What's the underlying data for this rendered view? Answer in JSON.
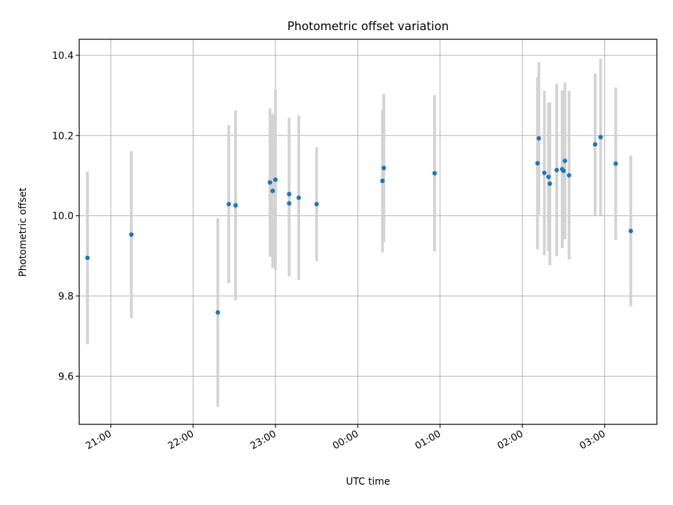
{
  "chart_data": {
    "type": "scatter",
    "title": "Photometric offset variation",
    "xlabel": "UTC time",
    "ylabel": "Photometric offset",
    "x_axis_kind": "time",
    "xlim": [
      "20:37",
      "03:38"
    ],
    "ylim": [
      9.48,
      10.44
    ],
    "x_ticks": [
      "21:00",
      "22:00",
      "23:00",
      "00:00",
      "01:00",
      "02:00",
      "03:00"
    ],
    "y_ticks": [
      9.6,
      9.8,
      10.0,
      10.2,
      10.4
    ],
    "grid": true,
    "legend": "none",
    "colors": {
      "point": "#1f77b4",
      "errorbar": "#d3d3d3"
    },
    "points": [
      {
        "t": "20:43",
        "y": 9.895,
        "yerr": 0.215
      },
      {
        "t": "21:15",
        "y": 9.953,
        "yerr": 0.208
      },
      {
        "t": "22:18",
        "y": 9.759,
        "yerr": 0.235
      },
      {
        "t": "22:26",
        "y": 10.029,
        "yerr": 0.197
      },
      {
        "t": "22:31",
        "y": 10.026,
        "yerr": 0.237
      },
      {
        "t": "22:56",
        "y": 10.083,
        "yerr": 0.185
      },
      {
        "t": "22:58",
        "y": 10.062,
        "yerr": 0.192
      },
      {
        "t": "23:00",
        "y": 10.09,
        "yerr": 0.225
      },
      {
        "t": "23:10",
        "y": 10.054,
        "yerr": 0.19
      },
      {
        "t": "23:10",
        "y": 10.031,
        "yerr": 0.182
      },
      {
        "t": "23:17",
        "y": 10.045,
        "yerr": 0.205
      },
      {
        "t": "23:30",
        "y": 10.029,
        "yerr": 0.142
      },
      {
        "t": "00:18",
        "y": 10.087,
        "yerr": 0.178
      },
      {
        "t": "00:19",
        "y": 10.119,
        "yerr": 0.185
      },
      {
        "t": "00:56",
        "y": 10.106,
        "yerr": 0.195
      },
      {
        "t": "02:11",
        "y": 10.131,
        "yerr": 0.215
      },
      {
        "t": "02:12",
        "y": 10.193,
        "yerr": 0.19
      },
      {
        "t": "02:16",
        "y": 10.107,
        "yerr": 0.205
      },
      {
        "t": "02:19",
        "y": 10.097,
        "yerr": 0.185
      },
      {
        "t": "02:20",
        "y": 10.08,
        "yerr": 0.203
      },
      {
        "t": "02:25",
        "y": 10.114,
        "yerr": 0.215
      },
      {
        "t": "02:29",
        "y": 10.116,
        "yerr": 0.197
      },
      {
        "t": "02:30",
        "y": 10.112,
        "yerr": 0.171
      },
      {
        "t": "02:31",
        "y": 10.137,
        "yerr": 0.195
      },
      {
        "t": "02:34",
        "y": 10.101,
        "yerr": 0.21
      },
      {
        "t": "02:53",
        "y": 10.178,
        "yerr": 0.177
      },
      {
        "t": "02:57",
        "y": 10.196,
        "yerr": 0.195
      },
      {
        "t": "03:08",
        "y": 10.13,
        "yerr": 0.19
      },
      {
        "t": "03:19",
        "y": 9.962,
        "yerr": 0.188
      }
    ]
  }
}
